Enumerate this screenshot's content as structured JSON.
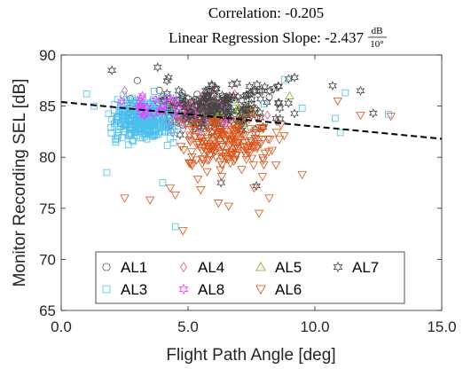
{
  "chart_data": {
    "type": "scatter",
    "title": "Correlation: -0.205",
    "subtitle_prefix": "Linear Regression Slope: -2.437",
    "subtitle_unit_num": "dB",
    "subtitle_unit_den": "10°",
    "xlabel": "Flight Path Angle [deg]",
    "ylabel": "Monitor Recording SEL [dB]",
    "xlim": [
      0,
      15
    ],
    "ylim": [
      65,
      90
    ],
    "xticks": [
      0,
      5,
      10,
      15
    ],
    "xtick_labels": [
      "0.0",
      "5.0",
      "10.0",
      "15.0"
    ],
    "yticks": [
      65,
      70,
      75,
      80,
      85,
      90
    ],
    "ytick_labels": [
      "65",
      "70",
      "75",
      "80",
      "85",
      "90"
    ],
    "grid": false,
    "legend_placement": "bottom-inside",
    "regression_line": {
      "x": [
        0,
        15
      ],
      "y": [
        85.4,
        81.8
      ],
      "style": "dashed",
      "color": "#000000"
    },
    "series": [
      {
        "name": "AL1",
        "marker": "circle",
        "color": "#555555",
        "cluster": {
          "x_center": 5.2,
          "x_spread": 1.6,
          "x_min": 2.0,
          "x_max": 9.0,
          "y_center": 84.6,
          "y_spread": 1.6,
          "count": 120
        },
        "points": [
          [
            3.0,
            87.5
          ],
          [
            8.2,
            85.9
          ]
        ]
      },
      {
        "name": "AL4",
        "marker": "diamond",
        "color": "#d94fa0",
        "cluster": {
          "x_center": 5.5,
          "x_spread": 1.5,
          "x_min": 2.0,
          "x_max": 9.0,
          "y_center": 84.3,
          "y_spread": 1.5,
          "count": 120
        },
        "points": [
          [
            2.5,
            86.5
          ],
          [
            8.5,
            83.5
          ]
        ]
      },
      {
        "name": "AL5",
        "marker": "triangle-up",
        "color": "#77ac30",
        "cluster": {
          "x_center": 6.5,
          "x_spread": 1.3,
          "x_min": 3.0,
          "x_max": 9.5,
          "y_center": 84.3,
          "y_spread": 1.3,
          "count": 30
        },
        "points": [
          [
            9.0,
            86.0
          ]
        ]
      },
      {
        "name": "AL7",
        "marker": "hexagram",
        "color": "#444444",
        "cluster": {
          "x_center": 6.3,
          "x_spread": 2.2,
          "x_min": 2.0,
          "x_max": 12.5,
          "y_center": 85.0,
          "y_spread": 2.0,
          "count": 160
        },
        "points": [
          [
            2.0,
            88.5
          ],
          [
            3.8,
            88.8
          ],
          [
            9.2,
            87.8
          ],
          [
            10.7,
            87.0
          ],
          [
            11.8,
            86.5
          ],
          [
            12.3,
            84.3
          ],
          [
            7.7,
            77.2
          ],
          [
            6.3,
            77.5
          ]
        ]
      },
      {
        "name": "AL3",
        "marker": "square",
        "color": "#4dbeee",
        "cluster": {
          "x_center": 3.2,
          "x_spread": 1.0,
          "x_min": 1.0,
          "x_max": 8.0,
          "y_center": 83.6,
          "y_spread": 1.9,
          "count": 320
        },
        "points": [
          [
            1.0,
            86.2
          ],
          [
            1.3,
            85.0
          ],
          [
            1.8,
            78.5
          ],
          [
            4.0,
            77.5
          ],
          [
            4.5,
            73.2
          ],
          [
            12.9,
            84.2
          ],
          [
            11.0,
            82.4
          ],
          [
            11.2,
            86.3
          ],
          [
            10.8,
            83.8
          ],
          [
            8.8,
            87.6
          ],
          [
            8.0,
            85.2
          ],
          [
            9.5,
            84.8
          ]
        ]
      },
      {
        "name": "AL8",
        "marker": "hexagram",
        "color": "#ff33ff",
        "cluster": {
          "x_center": 3.5,
          "x_spread": 1.0,
          "x_min": 2.0,
          "x_max": 6.0,
          "y_center": 85.0,
          "y_spread": 1.2,
          "count": 18
        },
        "points": [
          [
            3.2,
            86.0
          ]
        ]
      },
      {
        "name": "AL6",
        "marker": "triangle-down",
        "color": "#d95319",
        "cluster": {
          "x_center": 6.6,
          "x_spread": 1.5,
          "x_min": 2.5,
          "x_max": 12.0,
          "y_center": 81.3,
          "y_spread": 2.2,
          "count": 200
        },
        "points": [
          [
            2.5,
            76.0
          ],
          [
            4.3,
            77.0
          ],
          [
            4.5,
            76.3
          ],
          [
            3.5,
            75.8
          ],
          [
            4.8,
            72.8
          ],
          [
            6.2,
            75.5
          ],
          [
            6.6,
            75.2
          ],
          [
            7.6,
            77.0
          ],
          [
            7.8,
            74.5
          ],
          [
            9.5,
            78.3
          ],
          [
            10.9,
            85.5
          ],
          [
            11.8,
            84.1
          ],
          [
            13.0,
            84.0
          ],
          [
            8.2,
            76.0
          ],
          [
            5.5,
            76.8
          ]
        ]
      }
    ],
    "legend": {
      "rows": [
        [
          "AL1",
          "AL4",
          "AL5",
          "AL7"
        ],
        [
          "AL3",
          "AL8",
          "AL6"
        ]
      ]
    }
  }
}
